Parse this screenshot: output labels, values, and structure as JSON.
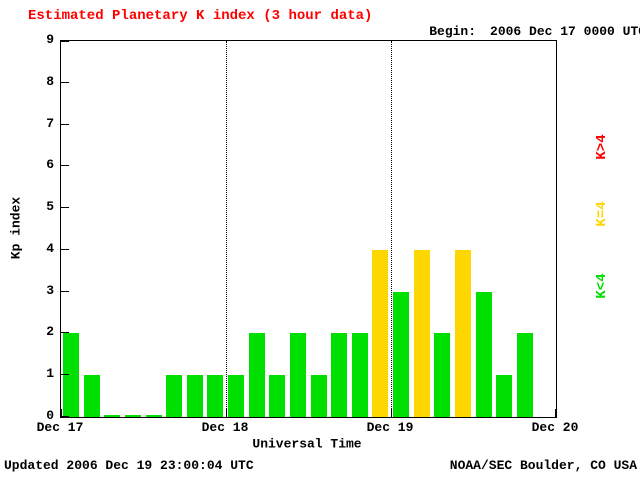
{
  "header": {
    "title": "Estimated Planetary K index (3 hour data)",
    "begin_label": "Begin:",
    "begin_value": "2006 Dec 17 0000 UTC"
  },
  "footer": {
    "updated": "Updated 2006 Dec 19 23:00:04 UTC",
    "source": "NOAA/SEC Boulder, CO USA"
  },
  "legend": [
    {
      "label": "K>4",
      "color": "#ff0000"
    },
    {
      "label": "K=4",
      "color": "#ffd700"
    },
    {
      "label": "K<4",
      "color": "#00e000"
    }
  ],
  "chart_data": {
    "type": "bar",
    "title": "Estimated Planetary K index (3 hour data)",
    "xlabel": "Universal Time",
    "ylabel": "Kp index",
    "ylim": [
      0,
      9
    ],
    "y_ticks": [
      0,
      1,
      2,
      3,
      4,
      5,
      6,
      7,
      8,
      9
    ],
    "x_tick_labels": [
      "Dec 17",
      "Dec 18",
      "Dec 19",
      "Dec 20"
    ],
    "bars_per_day": 8,
    "bar_interval_hours": 3,
    "grid": "dotted vertical lines at day boundaries",
    "legend_position": "right, rotated",
    "values": [
      2,
      1,
      0,
      0,
      0,
      1,
      1,
      1,
      1,
      2,
      1,
      2,
      1,
      2,
      2,
      4,
      3,
      4,
      2,
      4,
      3,
      1,
      2
    ],
    "colors": {
      "low": "#00e000",
      "mid": "#ffd700",
      "high": "#ff0000"
    },
    "thresholds": {
      "mid_equals": 4
    }
  }
}
